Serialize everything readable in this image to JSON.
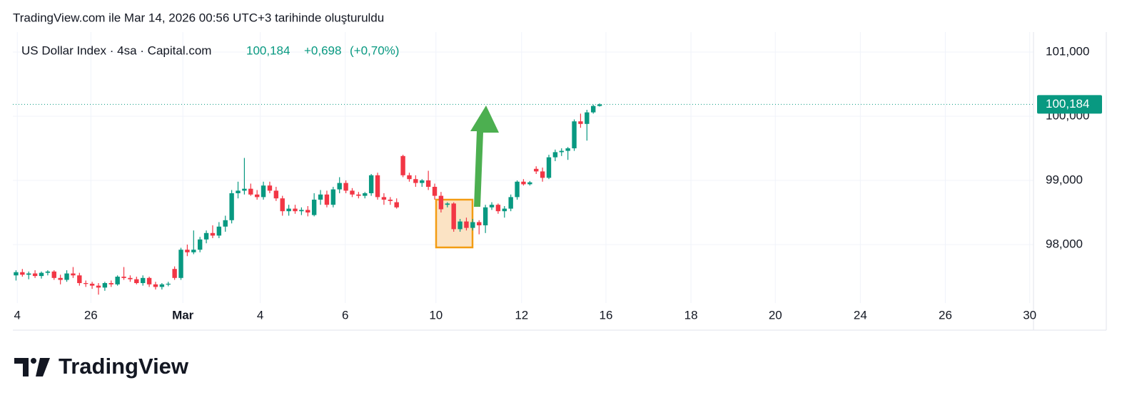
{
  "header": {
    "created": "TradingView.com ile Mar 14, 2026 00:56 UTC+3 tarihinde oluşturuldu"
  },
  "footer": {
    "logo": "TradingView"
  },
  "chart_data": {
    "type": "candlestick",
    "title": "US Dollar Index · 4sa · Capital.com",
    "price": "100,184",
    "change": "+0,698",
    "change_pct": "(+0,70%)",
    "up_color": "#089981",
    "down_color": "#f23645",
    "grid": true,
    "ylim": [
      97.089,
      101.311
    ],
    "yticks": [
      {
        "value": 98,
        "label": "98,000"
      },
      {
        "value": 99,
        "label": "99,000"
      },
      {
        "value": 100,
        "label": "100,000"
      },
      {
        "value": 101,
        "label": "101,000"
      }
    ],
    "xlim": [
      -0.5,
      160.4
    ],
    "xticks": [
      {
        "value": 0.2,
        "label": "4"
      },
      {
        "value": 11.8,
        "label": "26"
      },
      {
        "value": 26.3,
        "label": "Mar"
      },
      {
        "value": 38.5,
        "label": "4"
      },
      {
        "value": 51.9,
        "label": "6"
      },
      {
        "value": 66.2,
        "label": "10"
      },
      {
        "value": 79.7,
        "label": "12"
      },
      {
        "value": 93,
        "label": "16"
      },
      {
        "value": 106.4,
        "label": "18"
      },
      {
        "value": 119.7,
        "label": "20"
      },
      {
        "value": 133.1,
        "label": "24"
      },
      {
        "value": 146.5,
        "label": "26"
      },
      {
        "value": 159.8,
        "label": "30"
      }
    ],
    "last_price": {
      "value": 100.184,
      "label": "100,184"
    },
    "open": [
      97.52,
      97.57,
      97.53,
      97.55,
      97.51,
      97.56,
      97.58,
      97.48,
      97.45,
      97.55,
      97.52,
      97.4,
      97.39,
      97.36,
      97.33,
      97.4,
      97.38,
      97.5,
      97.48,
      97.46,
      97.4,
      97.48,
      97.38,
      97.34,
      97.38,
      97.62,
      97.48,
      97.92,
      97.88,
      97.92,
      98.08,
      98.18,
      98.14,
      98.28,
      98.38,
      98.8,
      98.84,
      98.87,
      98.78,
      98.74,
      98.92,
      98.84,
      98.72,
      98.52,
      98.56,
      98.52,
      98.54,
      98.46,
      98.7,
      98.78,
      98.62,
      98.86,
      98.96,
      98.84,
      98.78,
      98.76,
      98.8,
      99.08,
      98.74,
      98.7,
      98.66,
      99.38,
      99.08,
      99.02,
      98.96,
      99.0,
      98.9,
      98.76,
      98.62,
      98.64,
      98.24,
      98.36,
      98.26,
      98.35,
      98.3,
      98.58,
      98.62,
      98.52,
      98.56,
      98.74,
      98.98,
      98.94,
      99.18,
      99.14,
      99.04,
      99.36,
      99.44,
      99.46,
      99.5,
      99.92,
      99.88,
      100.06,
      100.16
    ],
    "high": [
      97.6,
      97.62,
      97.58,
      97.6,
      97.58,
      97.6,
      97.6,
      97.53,
      97.6,
      97.65,
      97.56,
      97.44,
      97.42,
      97.4,
      97.42,
      97.44,
      97.52,
      97.65,
      97.52,
      97.5,
      97.52,
      97.5,
      97.42,
      97.4,
      97.42,
      97.66,
      97.95,
      98.0,
      98.22,
      98.12,
      98.22,
      98.3,
      98.35,
      98.45,
      98.85,
      98.98,
      99.35,
      98.95,
      98.85,
      98.98,
      98.98,
      98.9,
      98.76,
      98.62,
      98.62,
      98.58,
      98.6,
      98.8,
      98.85,
      98.84,
      98.9,
      99.05,
      99.0,
      98.88,
      98.82,
      98.82,
      99.1,
      99.12,
      98.8,
      98.74,
      98.72,
      99.4,
      99.12,
      99.08,
      99.02,
      99.15,
      98.95,
      98.82,
      98.66,
      98.66,
      98.4,
      98.42,
      98.4,
      98.38,
      98.62,
      98.66,
      98.64,
      98.6,
      98.78,
      99.0,
      99.02,
      98.99,
      99.22,
      99.2,
      99.4,
      99.48,
      99.5,
      99.52,
      99.95,
      100.04,
      100.1,
      100.18,
      100.2
    ],
    "low": [
      97.44,
      97.5,
      97.46,
      97.48,
      97.47,
      97.52,
      97.45,
      97.38,
      97.42,
      97.48,
      97.36,
      97.34,
      97.31,
      97.22,
      97.28,
      97.34,
      97.36,
      97.45,
      97.42,
      97.38,
      97.36,
      97.34,
      97.3,
      97.3,
      97.35,
      97.45,
      97.45,
      97.82,
      97.85,
      97.88,
      98.02,
      98.1,
      98.1,
      98.2,
      98.33,
      98.72,
      98.78,
      98.76,
      98.7,
      98.7,
      98.8,
      98.68,
      98.45,
      98.45,
      98.48,
      98.46,
      98.44,
      98.44,
      98.62,
      98.58,
      98.58,
      98.8,
      98.8,
      98.74,
      98.72,
      98.72,
      98.76,
      98.7,
      98.62,
      98.62,
      98.56,
      99.05,
      98.98,
      98.9,
      98.9,
      98.85,
      98.7,
      98.5,
      98.58,
      98.2,
      98.2,
      98.22,
      98.22,
      98.16,
      98.18,
      98.54,
      98.48,
      98.42,
      98.52,
      98.7,
      98.92,
      98.92,
      99.1,
      98.98,
      99.02,
      99.3,
      99.38,
      99.32,
      99.46,
      99.82,
      99.62,
      100.04,
      100.15
    ],
    "close": [
      97.57,
      97.53,
      97.55,
      97.51,
      97.56,
      97.58,
      97.48,
      97.45,
      97.55,
      97.52,
      97.4,
      97.39,
      97.36,
      97.33,
      97.4,
      97.38,
      97.5,
      97.48,
      97.46,
      97.4,
      97.48,
      97.38,
      97.34,
      97.38,
      97.39,
      97.48,
      97.92,
      97.88,
      97.92,
      98.08,
      98.18,
      98.14,
      98.28,
      98.38,
      98.8,
      98.84,
      98.87,
      98.78,
      98.74,
      98.92,
      98.84,
      98.72,
      98.52,
      98.56,
      98.52,
      98.54,
      98.5,
      98.7,
      98.78,
      98.62,
      98.86,
      98.96,
      98.84,
      98.78,
      98.76,
      98.8,
      99.08,
      98.74,
      98.7,
      98.68,
      98.58,
      99.08,
      99.02,
      98.96,
      99.0,
      98.9,
      98.76,
      98.55,
      98.64,
      98.24,
      98.36,
      98.26,
      98.35,
      98.3,
      98.58,
      98.62,
      98.52,
      98.56,
      98.74,
      98.98,
      98.94,
      98.97,
      99.14,
      99.04,
      99.36,
      99.44,
      99.46,
      99.5,
      99.92,
      99.88,
      100.06,
      100.16,
      100.184
    ]
  }
}
